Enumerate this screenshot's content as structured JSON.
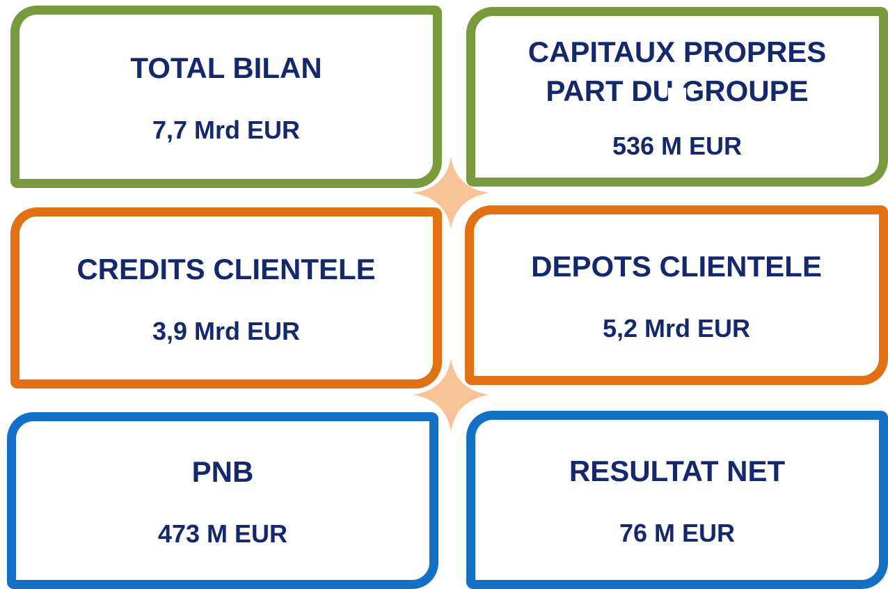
{
  "cards": [
    {
      "title": "TOTAL BILAN",
      "value": "7,7 Mrd EUR"
    },
    {
      "title": "CAPITAUX PROPRES PART DU GROUPE",
      "value": "536 M EUR"
    },
    {
      "title": "CREDITS CLIENTELE",
      "value": "3,9 Mrd EUR"
    },
    {
      "title": "DEPOTS CLIENTELE",
      "value": "5,2 Mrd EUR"
    },
    {
      "title": "PNB",
      "value": "473 M EUR"
    },
    {
      "title": "RESULTAT NET",
      "value": "76 M EUR"
    }
  ]
}
